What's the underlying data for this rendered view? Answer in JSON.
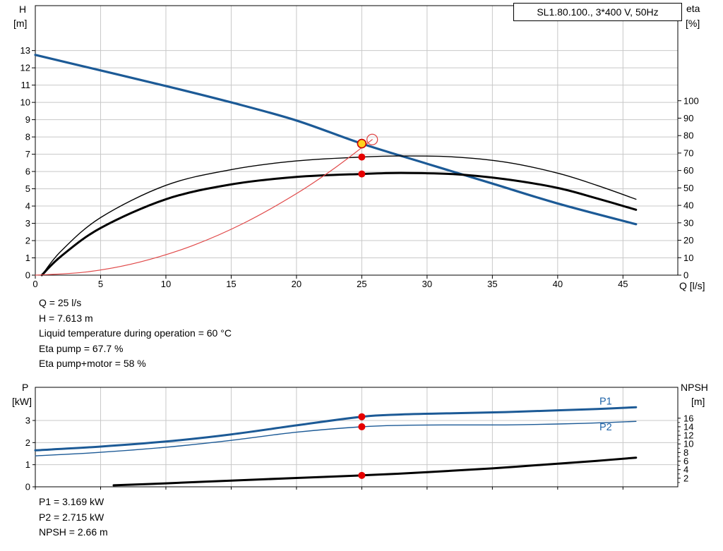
{
  "title_box": "SL1.80.100., 3*400 V, 50Hz",
  "colors": {
    "curve_blue": "#1c5a96",
    "curve_black": "#000000",
    "curve_red": "#e04848",
    "marker_red": "#e60000",
    "marker_yellow": "#ffd21e",
    "marker_outline_red": "#cc0000",
    "label_blue": "#2266aa",
    "grid": "#c8c8c8",
    "axis": "#000000",
    "background": "#ffffff"
  },
  "readout_top": [
    "Q = 25 l/s",
    "H = 7.613 m",
    "Liquid temperature during operation = 60 °C",
    "Eta pump = 67.7 %",
    "Eta pump+motor = 58 %"
  ],
  "readout_bottom": [
    "P1 = 3.169 kW",
    "P2 = 2.715 kW",
    "NPSH = 2.66 m"
  ],
  "chart_data": [
    {
      "id": "head-efficiency-chart",
      "type": "line",
      "title": "SL1.80.100., 3*400 V, 50Hz",
      "x": {
        "label": "Q [l/s]",
        "min": 0,
        "max": 49.2,
        "ticks": [
          0,
          5,
          10,
          15,
          20,
          25,
          30,
          35,
          40,
          45
        ],
        "show_labels": true
      },
      "y_left": {
        "label": "H",
        "unit": "[m]",
        "min": 0,
        "max": 15.6,
        "ticks": [
          0,
          1,
          2,
          3,
          4,
          5,
          6,
          7,
          8,
          9,
          10,
          11,
          12,
          13
        ]
      },
      "y_right": {
        "label": "eta",
        "unit": "[%]",
        "min": 0,
        "max": 154.5,
        "ticks": [
          0,
          10,
          20,
          30,
          40,
          50,
          60,
          70,
          80,
          90,
          100
        ]
      },
      "series": [
        {
          "name": "head-curve",
          "axis": "left",
          "color": "#1c5a96",
          "width": 3.2,
          "points": [
            [
              0,
              12.75
            ],
            [
              5,
              11.85
            ],
            [
              10,
              10.95
            ],
            [
              15,
              10.0
            ],
            [
              20,
              8.95
            ],
            [
              25,
              7.613
            ],
            [
              30,
              6.45
            ],
            [
              35,
              5.3
            ],
            [
              40,
              4.15
            ],
            [
              46,
              2.95
            ]
          ]
        },
        {
          "name": "eta-pump-curve",
          "axis": "right",
          "color": "#000000",
          "width": 1.4,
          "points": [
            [
              0.5,
              0
            ],
            [
              2,
              14
            ],
            [
              5,
              33
            ],
            [
              10,
              51.5
            ],
            [
              15,
              60.5
            ],
            [
              20,
              65.5
            ],
            [
              25,
              67.7
            ],
            [
              28,
              68.3
            ],
            [
              32,
              67.8
            ],
            [
              36,
              64.8
            ],
            [
              40,
              58.5
            ],
            [
              43,
              51.5
            ],
            [
              46,
              43.5
            ]
          ]
        },
        {
          "name": "eta-pump-motor-curve",
          "axis": "right",
          "color": "#000000",
          "width": 3,
          "points": [
            [
              0.5,
              0
            ],
            [
              2,
              11
            ],
            [
              5,
              27
            ],
            [
              10,
              43.5
            ],
            [
              15,
              52
            ],
            [
              20,
              56.3
            ],
            [
              25,
              58
            ],
            [
              28,
              58.6
            ],
            [
              32,
              57.9
            ],
            [
              36,
              55
            ],
            [
              40,
              50
            ],
            [
              43,
              44
            ],
            [
              46,
              37.5
            ]
          ]
        },
        {
          "name": "system-curve",
          "axis": "left",
          "color": "#e04848",
          "width": 1.2,
          "points": [
            [
              0,
              0
            ],
            [
              4,
              0.19
            ],
            [
              8,
              0.76
            ],
            [
              12,
              1.7
            ],
            [
              16,
              3.02
            ],
            [
              20,
              4.72
            ],
            [
              23,
              6.24
            ],
            [
              25.8,
              7.85
            ]
          ]
        }
      ],
      "markers": [
        {
          "name": "system-intersection-marker",
          "axis": "left",
          "x": 25.8,
          "y": 7.85,
          "r": 7.5,
          "fill": "none",
          "stroke": "#e04848",
          "stroke_width": 1.3,
          "interactable": false
        },
        {
          "name": "duty-point-marker",
          "axis": "left",
          "x": 25,
          "y": 7.613,
          "r": 6,
          "fill": "#ffd21e",
          "stroke": "#cc0000",
          "stroke_width": 1.6,
          "interactable": true
        },
        {
          "name": "eta-pump-point",
          "axis": "right",
          "x": 25,
          "y": 67.7,
          "r": 5,
          "fill": "#e60000",
          "stroke": "none",
          "interactable": false
        },
        {
          "name": "eta-pump-motor-point",
          "axis": "right",
          "x": 25,
          "y": 58,
          "r": 5,
          "fill": "#e60000",
          "stroke": "none",
          "interactable": false
        }
      ],
      "labels": []
    },
    {
      "id": "power-npsh-chart",
      "type": "line",
      "x": {
        "label": "",
        "min": 0,
        "max": 49.2,
        "ticks": [
          0,
          5,
          10,
          15,
          20,
          25,
          30,
          35,
          40,
          45
        ],
        "show_labels": false
      },
      "y_left": {
        "label": "P",
        "unit": "[kW]",
        "min": 0,
        "max": 4.5,
        "ticks": [
          0,
          1,
          2,
          3
        ]
      },
      "y_right": {
        "label": "NPSH",
        "unit": "[m]",
        "min": 0,
        "max": 23.2,
        "ticks": [
          2,
          4,
          6,
          8,
          10,
          12,
          14,
          16
        ],
        "minor_step": 1,
        "minor_from": 1,
        "minor_to": 16
      },
      "series": [
        {
          "name": "p1-curve",
          "axis": "left",
          "color": "#1c5a96",
          "width": 3,
          "points": [
            [
              0,
              1.65
            ],
            [
              5,
              1.82
            ],
            [
              10,
              2.05
            ],
            [
              15,
              2.37
            ],
            [
              20,
              2.78
            ],
            [
              25,
              3.169
            ],
            [
              28,
              3.27
            ],
            [
              32,
              3.33
            ],
            [
              36,
              3.38
            ],
            [
              40,
              3.46
            ],
            [
              43,
              3.52
            ],
            [
              46,
              3.6
            ]
          ]
        },
        {
          "name": "p2-curve",
          "axis": "left",
          "color": "#1c5a96",
          "width": 1.4,
          "points": [
            [
              0,
              1.4
            ],
            [
              5,
              1.56
            ],
            [
              10,
              1.79
            ],
            [
              15,
              2.1
            ],
            [
              20,
              2.47
            ],
            [
              25,
              2.715
            ],
            [
              28,
              2.78
            ],
            [
              32,
              2.8
            ],
            [
              36,
              2.8
            ],
            [
              40,
              2.84
            ],
            [
              43,
              2.89
            ],
            [
              46,
              2.96
            ]
          ]
        },
        {
          "name": "npsh-curve",
          "axis": "right",
          "color": "#000000",
          "width": 3,
          "points": [
            [
              6,
              0.35
            ],
            [
              10,
              0.8
            ],
            [
              15,
              1.45
            ],
            [
              20,
              2.05
            ],
            [
              25,
              2.66
            ],
            [
              30,
              3.4
            ],
            [
              35,
              4.3
            ],
            [
              40,
              5.4
            ],
            [
              43,
              6.05
            ],
            [
              46,
              6.8
            ]
          ]
        }
      ],
      "markers": [
        {
          "name": "p1-point",
          "axis": "left",
          "x": 25,
          "y": 3.169,
          "r": 5,
          "fill": "#e60000",
          "stroke": "none",
          "interactable": false
        },
        {
          "name": "p2-point",
          "axis": "left",
          "x": 25,
          "y": 2.715,
          "r": 5,
          "fill": "#e60000",
          "stroke": "none",
          "interactable": false
        },
        {
          "name": "npsh-point",
          "axis": "right",
          "x": 25,
          "y": 2.66,
          "r": 5,
          "fill": "#e60000",
          "stroke": "none",
          "interactable": false
        }
      ],
      "labels": [
        {
          "text": "P1",
          "axis": "left",
          "x": 43.2,
          "y": 3.72,
          "color": "#2266aa"
        },
        {
          "text": "P2",
          "axis": "left",
          "x": 43.2,
          "y": 2.55,
          "color": "#2266aa"
        }
      ]
    }
  ]
}
